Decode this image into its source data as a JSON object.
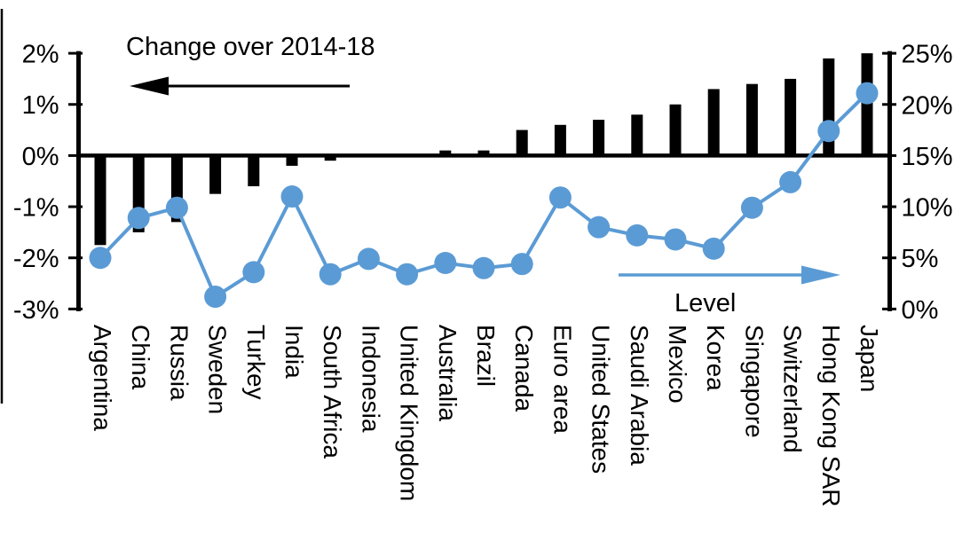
{
  "chart_data": {
    "type": "combo-bar-line",
    "categories": [
      "Argentina",
      "China",
      "Russia",
      "Sweden",
      "Turkey",
      "India",
      "South Africa",
      "Indonesia",
      "United Kingdom",
      "Australia",
      "Brazil",
      "Canada",
      "Euro area",
      "United States",
      "Saudi Arabia",
      "Mexico",
      "Korea",
      "Singapore",
      "Switzerland",
      "Hong Kong SAR",
      "Japan"
    ],
    "series": [
      {
        "name": "Change over 2014-18",
        "type": "bar",
        "axis": "left",
        "color": "#000000",
        "arrow_direction": "left",
        "values": [
          -1.75,
          -1.5,
          -1.3,
          -0.75,
          -0.6,
          -0.2,
          -0.1,
          0,
          0,
          0.1,
          0.1,
          0.5,
          0.6,
          0.7,
          0.8,
          1.0,
          1.3,
          1.4,
          1.5,
          1.9,
          2.0
        ]
      },
      {
        "name": "Level",
        "type": "line",
        "axis": "right",
        "color": "#5b9bd5",
        "arrow_direction": "right",
        "values": [
          5,
          8.9,
          9.9,
          1.2,
          3.6,
          11,
          3.4,
          4.9,
          3.4,
          4.5,
          4,
          4.4,
          10.9,
          8,
          7.2,
          6.8,
          5.9,
          9.9,
          12.4,
          17.4,
          21.1
        ]
      }
    ],
    "left_axis": {
      "tick_labels": [
        "2%",
        "1%",
        "0%",
        "-1%",
        "-2%",
        "-3%"
      ],
      "tick_values": [
        2,
        1,
        0,
        -1,
        -2,
        -3
      ],
      "range": [
        -3,
        2
      ]
    },
    "right_axis": {
      "tick_labels": [
        "25%",
        "20%",
        "15%",
        "10%",
        "5%",
        "0%"
      ],
      "tick_values": [
        25,
        20,
        15,
        10,
        5,
        0
      ],
      "range": [
        0,
        25
      ]
    },
    "grid": false,
    "legend_position": "inside-plot-arrows"
  },
  "colors": {
    "bar": "#000000",
    "line": "#5b9bd5",
    "axis": "#000000",
    "background": "#ffffff"
  }
}
